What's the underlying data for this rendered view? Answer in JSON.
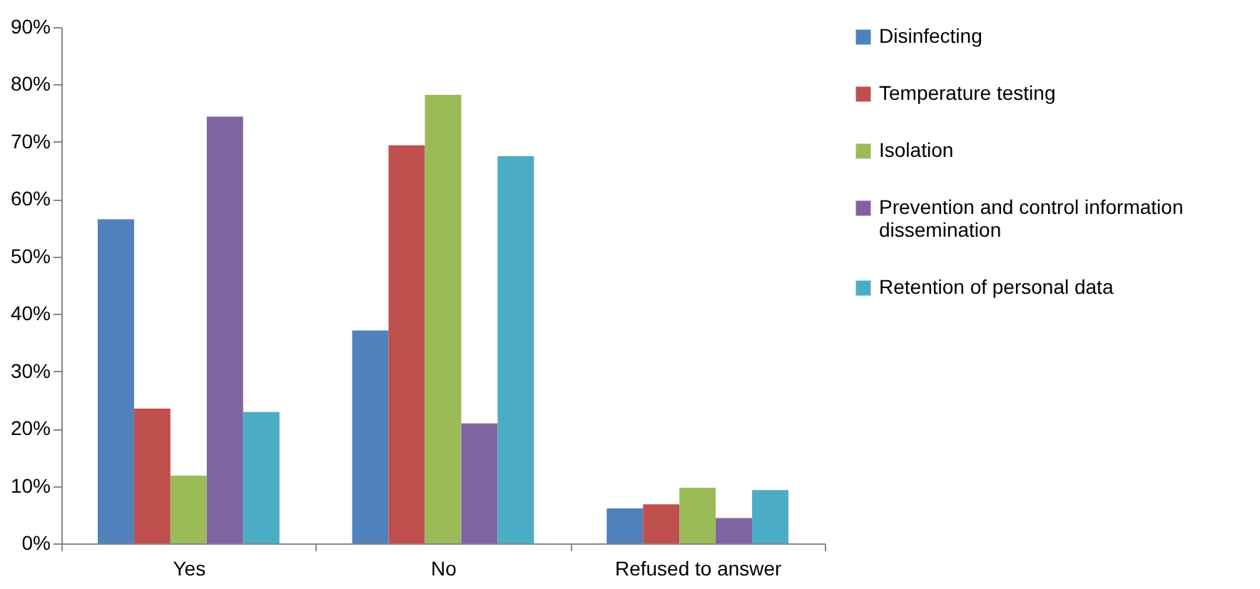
{
  "chart_data": {
    "type": "bar",
    "categories": [
      "Yes",
      "No",
      "Refused to answer"
    ],
    "series": [
      {
        "name": "Disinfecting",
        "color": "#4f81bd",
        "values": [
          56.5,
          37.1,
          6.1
        ]
      },
      {
        "name": "Temperature testing",
        "color": "#c0504d",
        "values": [
          23.5,
          69.4,
          6.8
        ]
      },
      {
        "name": "Isolation",
        "color": "#9bbb59",
        "values": [
          11.8,
          78.2,
          9.7
        ]
      },
      {
        "name": "Prevention and control information dissemination",
        "color": "#8064a2",
        "values": [
          74.4,
          20.9,
          4.4
        ]
      },
      {
        "name": "Retention of personal data",
        "color": "#4bacc6",
        "values": [
          22.9,
          67.5,
          9.3
        ]
      }
    ],
    "ylim": [
      0,
      90
    ],
    "yticks": [
      {
        "value": 0,
        "label": "0%"
      },
      {
        "value": 10,
        "label": "10%"
      },
      {
        "value": 20,
        "label": "20%"
      },
      {
        "value": 30,
        "label": "30%"
      },
      {
        "value": 40,
        "label": "40%"
      },
      {
        "value": 50,
        "label": "50%"
      },
      {
        "value": 60,
        "label": "60%"
      },
      {
        "value": 70,
        "label": "70%"
      },
      {
        "value": 80,
        "label": "80%"
      },
      {
        "value": 90,
        "label": "90%"
      }
    ],
    "grid": false,
    "legend": "right"
  }
}
